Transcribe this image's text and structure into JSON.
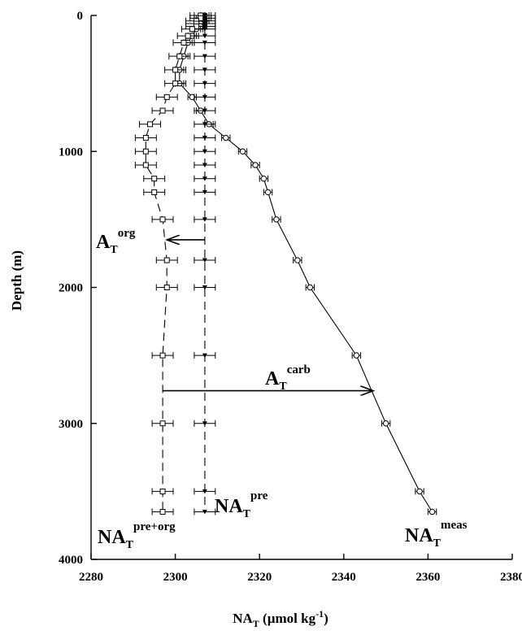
{
  "chart_data": {
    "type": "line",
    "xlabel": {
      "main": "NA",
      "sub": "T",
      "rest": " (µmol kg",
      "sup": "-1",
      "close": ")"
    },
    "ylabel": "Depth (m)",
    "xlim": [
      2280,
      2380
    ],
    "ylim": [
      0,
      4000
    ],
    "y_inverted": true,
    "x_axis_position": "bottom",
    "grid": false,
    "legend": "none",
    "x_ticks": [
      2280,
      2300,
      2320,
      2340,
      2360,
      2380
    ],
    "y_ticks": [
      0,
      1000,
      2000,
      3000,
      4000
    ],
    "series": [
      {
        "label_parts": {
          "main": "NA",
          "sub": "T",
          "sup": "meas"
        },
        "marker": "open-circle",
        "line": "solid",
        "xerr": 1,
        "depth": [
          0,
          20,
          40,
          60,
          80,
          100,
          150,
          200,
          300,
          400,
          500,
          600,
          700,
          800,
          900,
          1000,
          1100,
          1200,
          1300,
          1500,
          1800,
          2000,
          2500,
          3000,
          3500,
          3650
        ],
        "x": [
          2307,
          2306,
          2307,
          2306,
          2306,
          2305,
          2304,
          2303,
          2302,
          2301,
          2301,
          2304,
          2306,
          2308,
          2312,
          2316,
          2319,
          2321,
          2322,
          2324,
          2329,
          2332,
          2343,
          2350,
          2358,
          2361
        ]
      },
      {
        "label_parts": {
          "main": "NA",
          "sub": "T",
          "sup": "pre"
        },
        "marker": "filled-triangle",
        "line": "dashed",
        "xerr": 2.5,
        "depth": [
          0,
          20,
          40,
          60,
          80,
          100,
          150,
          200,
          300,
          400,
          500,
          600,
          700,
          800,
          900,
          1000,
          1100,
          1200,
          1300,
          1500,
          1800,
          2000,
          2500,
          3000,
          3500,
          3650
        ],
        "x": [
          2307,
          2307,
          2307,
          2307,
          2307,
          2307,
          2307,
          2307,
          2307,
          2307,
          2307,
          2307,
          2307,
          2307,
          2307,
          2307,
          2307,
          2307,
          2307,
          2307,
          2307,
          2307,
          2307,
          2307,
          2307,
          2307
        ]
      },
      {
        "label_parts": {
          "main": "NA",
          "sub": "T",
          "sup": "pre+org"
        },
        "marker": "open-square",
        "line": "dashed",
        "xerr": 2.5,
        "depth": [
          0,
          20,
          40,
          60,
          80,
          100,
          150,
          200,
          300,
          400,
          500,
          600,
          700,
          800,
          900,
          1000,
          1100,
          1200,
          1300,
          1500,
          1800,
          2000,
          2500,
          3000,
          3500,
          3650
        ],
        "x": [
          2306,
          2306,
          2305,
          2305,
          2305,
          2304,
          2303,
          2302,
          2301,
          2300,
          2300,
          2298,
          2297,
          2294,
          2293,
          2293,
          2293,
          2295,
          2295,
          2297,
          2298,
          2298,
          2297,
          2297,
          2297,
          2297
        ]
      }
    ],
    "annotations": [
      {
        "id": "org",
        "label_parts": {
          "main": "A",
          "sub": "T",
          "sup": "org"
        },
        "arrow_from": [
          2307,
          1650
        ],
        "arrow_to": [
          2298,
          1650
        ]
      },
      {
        "id": "carb",
        "label_parts": {
          "main": "A",
          "sub": "T",
          "sup": "carb"
        },
        "arrow_from": [
          2297,
          2760
        ],
        "arrow_to": [
          2347,
          2760
        ]
      }
    ]
  }
}
